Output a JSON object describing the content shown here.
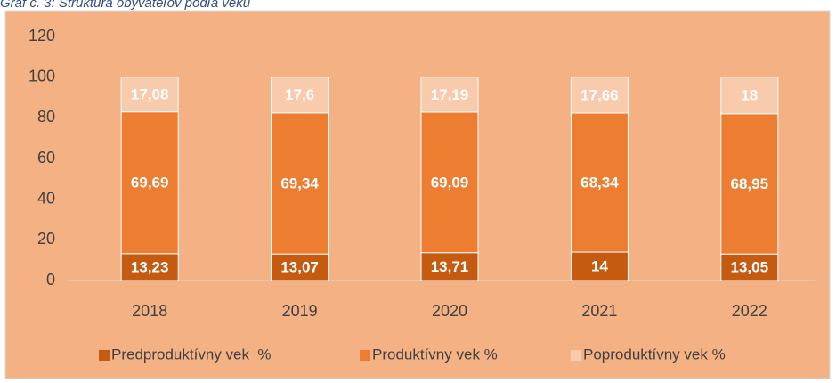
{
  "chart_data": {
    "type": "stacked_bar",
    "title": "Graf č. 3: Štruktúra obyvateľov podľa veku",
    "categories": [
      "2018",
      "2019",
      "2020",
      "2021",
      "2022"
    ],
    "series": [
      {
        "name": "Predproduktívny vek  %",
        "color": "#c55a11",
        "values": [
          13.23,
          13.07,
          13.71,
          14,
          13.05
        ],
        "value_labels": [
          "13,23",
          "13,07",
          "13,71",
          "14",
          "13,05"
        ]
      },
      {
        "name": "Produktívny vek %",
        "color": "#ed7d31",
        "values": [
          69.69,
          69.34,
          69.09,
          68.34,
          68.95
        ],
        "value_labels": [
          "69,69",
          "69,34",
          "69,09",
          "68,34",
          "68,95"
        ]
      },
      {
        "name": "Poproduktívny vek %",
        "color": "#f8cbad",
        "values": [
          17.08,
          17.6,
          17.19,
          17.66,
          18
        ],
        "value_labels": [
          "17,08",
          "17,6",
          "17,19",
          "17,66",
          "18"
        ]
      }
    ],
    "ylim": [
      0,
      120
    ],
    "yticks": [
      0,
      20,
      40,
      60,
      80,
      100,
      120
    ],
    "grid": false,
    "legend": "bottom"
  }
}
